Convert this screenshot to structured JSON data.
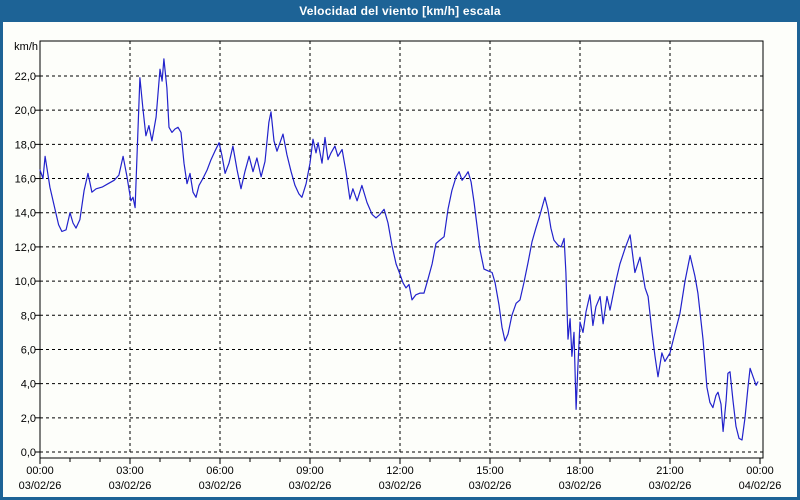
{
  "window": {
    "title": "Velocidad del viento [km/h] escala"
  },
  "colors": {
    "title_bar": "#1d6396",
    "window_border": "#1d6396",
    "line": "#2222cc",
    "grid": "#000000",
    "text": "#000000",
    "background": "#fdfefa"
  },
  "chart_data": {
    "type": "line",
    "title": "Velocidad del viento [km/h] escala",
    "ylabel": "km/h",
    "xlabel": "",
    "grid": "dashed",
    "legend": "none",
    "ylim": [
      0,
      24.1
    ],
    "xlim_hours": [
      0,
      24.1
    ],
    "y_ticks": [
      {
        "value": 0,
        "label": "0,0"
      },
      {
        "value": 2,
        "label": "2,0"
      },
      {
        "value": 4,
        "label": "4,0"
      },
      {
        "value": 6,
        "label": "6,0"
      },
      {
        "value": 8,
        "label": "8,0"
      },
      {
        "value": 10,
        "label": "10,0"
      },
      {
        "value": 12,
        "label": "12,0"
      },
      {
        "value": 14,
        "label": "14,0"
      },
      {
        "value": 16,
        "label": "16,0"
      },
      {
        "value": 18,
        "label": "18,0"
      },
      {
        "value": 20,
        "label": "20,0"
      },
      {
        "value": 22,
        "label": "22,0"
      }
    ],
    "x_ticks": [
      {
        "hour": 0,
        "time": "00:00",
        "date": "03/02/26"
      },
      {
        "hour": 3,
        "time": "03:00",
        "date": "03/02/26"
      },
      {
        "hour": 6,
        "time": "06:00",
        "date": "03/02/26"
      },
      {
        "hour": 9,
        "time": "09:00",
        "date": "03/02/26"
      },
      {
        "hour": 12,
        "time": "12:00",
        "date": "03/02/26"
      },
      {
        "hour": 15,
        "time": "15:00",
        "date": "03/02/26"
      },
      {
        "hour": 18,
        "time": "18:00",
        "date": "03/02/26"
      },
      {
        "hour": 21,
        "time": "21:00",
        "date": "03/02/26"
      },
      {
        "hour": 24,
        "time": "00:00",
        "date": "04/02/26"
      }
    ],
    "x_minor_tick_every_hours": 1,
    "series": [
      {
        "name": "Velocidad del viento",
        "unit": "km/h",
        "points": [
          [
            0.0,
            16.5
          ],
          [
            0.1,
            16.0
          ],
          [
            0.17,
            17.3
          ],
          [
            0.25,
            16.4
          ],
          [
            0.33,
            15.5
          ],
          [
            0.5,
            14.2
          ],
          [
            0.62,
            13.3
          ],
          [
            0.73,
            12.9
          ],
          [
            0.87,
            13.0
          ],
          [
            1.0,
            14.0
          ],
          [
            1.1,
            13.4
          ],
          [
            1.2,
            13.1
          ],
          [
            1.33,
            13.6
          ],
          [
            1.47,
            15.3
          ],
          [
            1.6,
            16.3
          ],
          [
            1.73,
            15.2
          ],
          [
            1.87,
            15.4
          ],
          [
            2.07,
            15.5
          ],
          [
            2.27,
            15.7
          ],
          [
            2.47,
            15.9
          ],
          [
            2.63,
            16.2
          ],
          [
            2.77,
            17.3
          ],
          [
            2.9,
            16.1
          ],
          [
            3.03,
            14.7
          ],
          [
            3.1,
            14.9
          ],
          [
            3.17,
            14.3
          ],
          [
            3.33,
            21.9
          ],
          [
            3.43,
            20.1
          ],
          [
            3.53,
            18.5
          ],
          [
            3.63,
            19.1
          ],
          [
            3.73,
            18.2
          ],
          [
            3.87,
            19.6
          ],
          [
            4.0,
            22.4
          ],
          [
            4.07,
            21.7
          ],
          [
            4.13,
            23.0
          ],
          [
            4.23,
            21.3
          ],
          [
            4.3,
            19.0
          ],
          [
            4.4,
            18.7
          ],
          [
            4.5,
            18.9
          ],
          [
            4.6,
            19.0
          ],
          [
            4.7,
            18.7
          ],
          [
            4.8,
            16.9
          ],
          [
            4.9,
            15.7
          ],
          [
            5.0,
            16.3
          ],
          [
            5.1,
            15.2
          ],
          [
            5.2,
            14.9
          ],
          [
            5.3,
            15.6
          ],
          [
            5.43,
            16.0
          ],
          [
            5.57,
            16.5
          ],
          [
            5.7,
            17.1
          ],
          [
            5.83,
            17.6
          ],
          [
            5.97,
            18.1
          ],
          [
            6.07,
            17.3
          ],
          [
            6.17,
            16.3
          ],
          [
            6.3,
            16.9
          ],
          [
            6.43,
            17.9
          ],
          [
            6.57,
            16.5
          ],
          [
            6.7,
            15.4
          ],
          [
            6.83,
            16.4
          ],
          [
            6.97,
            17.3
          ],
          [
            7.1,
            16.4
          ],
          [
            7.23,
            17.2
          ],
          [
            7.37,
            16.1
          ],
          [
            7.5,
            17.0
          ],
          [
            7.63,
            19.3
          ],
          [
            7.7,
            19.9
          ],
          [
            7.8,
            18.2
          ],
          [
            7.9,
            17.6
          ],
          [
            8.0,
            18.1
          ],
          [
            8.1,
            18.6
          ],
          [
            8.23,
            17.4
          ],
          [
            8.37,
            16.4
          ],
          [
            8.5,
            15.6
          ],
          [
            8.63,
            15.1
          ],
          [
            8.73,
            14.9
          ],
          [
            8.87,
            15.7
          ],
          [
            9.0,
            16.9
          ],
          [
            9.1,
            18.3
          ],
          [
            9.2,
            17.5
          ],
          [
            9.27,
            18.1
          ],
          [
            9.4,
            16.9
          ],
          [
            9.5,
            18.4
          ],
          [
            9.6,
            17.1
          ],
          [
            9.7,
            17.5
          ],
          [
            9.83,
            17.9
          ],
          [
            9.93,
            17.3
          ],
          [
            10.07,
            17.7
          ],
          [
            10.2,
            16.4
          ],
          [
            10.33,
            14.8
          ],
          [
            10.43,
            15.4
          ],
          [
            10.57,
            14.7
          ],
          [
            10.73,
            15.6
          ],
          [
            10.9,
            14.6
          ],
          [
            11.07,
            13.9
          ],
          [
            11.2,
            13.7
          ],
          [
            11.33,
            13.9
          ],
          [
            11.47,
            14.2
          ],
          [
            11.6,
            13.4
          ],
          [
            11.73,
            12.1
          ],
          [
            11.87,
            11.0
          ],
          [
            12.0,
            10.4
          ],
          [
            12.1,
            9.9
          ],
          [
            12.2,
            9.6
          ],
          [
            12.3,
            9.8
          ],
          [
            12.4,
            8.9
          ],
          [
            12.53,
            9.2
          ],
          [
            12.67,
            9.3
          ],
          [
            12.8,
            9.3
          ],
          [
            12.93,
            10.1
          ],
          [
            13.07,
            11.0
          ],
          [
            13.2,
            12.2
          ],
          [
            13.33,
            12.4
          ],
          [
            13.47,
            12.6
          ],
          [
            13.6,
            14.2
          ],
          [
            13.73,
            15.3
          ],
          [
            13.87,
            16.1
          ],
          [
            13.97,
            16.4
          ],
          [
            14.07,
            15.9
          ],
          [
            14.2,
            16.2
          ],
          [
            14.27,
            16.4
          ],
          [
            14.37,
            15.8
          ],
          [
            14.47,
            14.6
          ],
          [
            14.57,
            13.2
          ],
          [
            14.67,
            11.8
          ],
          [
            14.8,
            10.7
          ],
          [
            14.93,
            10.6
          ],
          [
            15.07,
            10.5
          ],
          [
            15.17,
            9.9
          ],
          [
            15.3,
            8.6
          ],
          [
            15.4,
            7.3
          ],
          [
            15.5,
            6.5
          ],
          [
            15.6,
            6.9
          ],
          [
            15.73,
            8.0
          ],
          [
            15.87,
            8.7
          ],
          [
            16.0,
            8.9
          ],
          [
            16.13,
            9.9
          ],
          [
            16.27,
            11.1
          ],
          [
            16.4,
            12.3
          ],
          [
            16.53,
            13.1
          ],
          [
            16.67,
            13.9
          ],
          [
            16.83,
            14.9
          ],
          [
            16.93,
            14.2
          ],
          [
            17.03,
            13.1
          ],
          [
            17.13,
            12.4
          ],
          [
            17.27,
            12.1
          ],
          [
            17.37,
            12.0
          ],
          [
            17.47,
            12.5
          ],
          [
            17.53,
            10.5
          ],
          [
            17.6,
            6.6
          ],
          [
            17.67,
            7.8
          ],
          [
            17.73,
            5.6
          ],
          [
            17.8,
            7.0
          ],
          [
            17.87,
            2.5
          ],
          [
            17.93,
            5.0
          ],
          [
            18.0,
            7.6
          ],
          [
            18.1,
            7.0
          ],
          [
            18.2,
            8.2
          ],
          [
            18.33,
            9.2
          ],
          [
            18.43,
            7.4
          ],
          [
            18.53,
            8.5
          ],
          [
            18.67,
            9.1
          ],
          [
            18.77,
            7.5
          ],
          [
            18.9,
            9.1
          ],
          [
            19.0,
            8.3
          ],
          [
            19.17,
            9.8
          ],
          [
            19.33,
            11.0
          ],
          [
            19.5,
            11.9
          ],
          [
            19.67,
            12.7
          ],
          [
            19.83,
            10.5
          ],
          [
            20.0,
            11.4
          ],
          [
            20.17,
            9.6
          ],
          [
            20.27,
            9.1
          ],
          [
            20.4,
            7.0
          ],
          [
            20.5,
            5.6
          ],
          [
            20.6,
            4.4
          ],
          [
            20.73,
            5.8
          ],
          [
            20.83,
            5.3
          ],
          [
            21.0,
            5.8
          ],
          [
            21.17,
            7.0
          ],
          [
            21.33,
            8.1
          ],
          [
            21.5,
            10.0
          ],
          [
            21.67,
            11.5
          ],
          [
            21.83,
            10.3
          ],
          [
            21.93,
            9.3
          ],
          [
            22.1,
            6.6
          ],
          [
            22.23,
            3.8
          ],
          [
            22.33,
            2.9
          ],
          [
            22.43,
            2.6
          ],
          [
            22.53,
            3.3
          ],
          [
            22.6,
            3.5
          ],
          [
            22.7,
            2.8
          ],
          [
            22.77,
            1.2
          ],
          [
            22.87,
            3.0
          ],
          [
            22.93,
            4.6
          ],
          [
            23.0,
            4.7
          ],
          [
            23.1,
            3.0
          ],
          [
            23.2,
            1.5
          ],
          [
            23.3,
            0.8
          ],
          [
            23.4,
            0.7
          ],
          [
            23.5,
            2.0
          ],
          [
            23.6,
            3.8
          ],
          [
            23.67,
            4.9
          ],
          [
            23.77,
            4.4
          ],
          [
            23.87,
            3.9
          ],
          [
            23.93,
            4.1
          ]
        ]
      }
    ]
  }
}
